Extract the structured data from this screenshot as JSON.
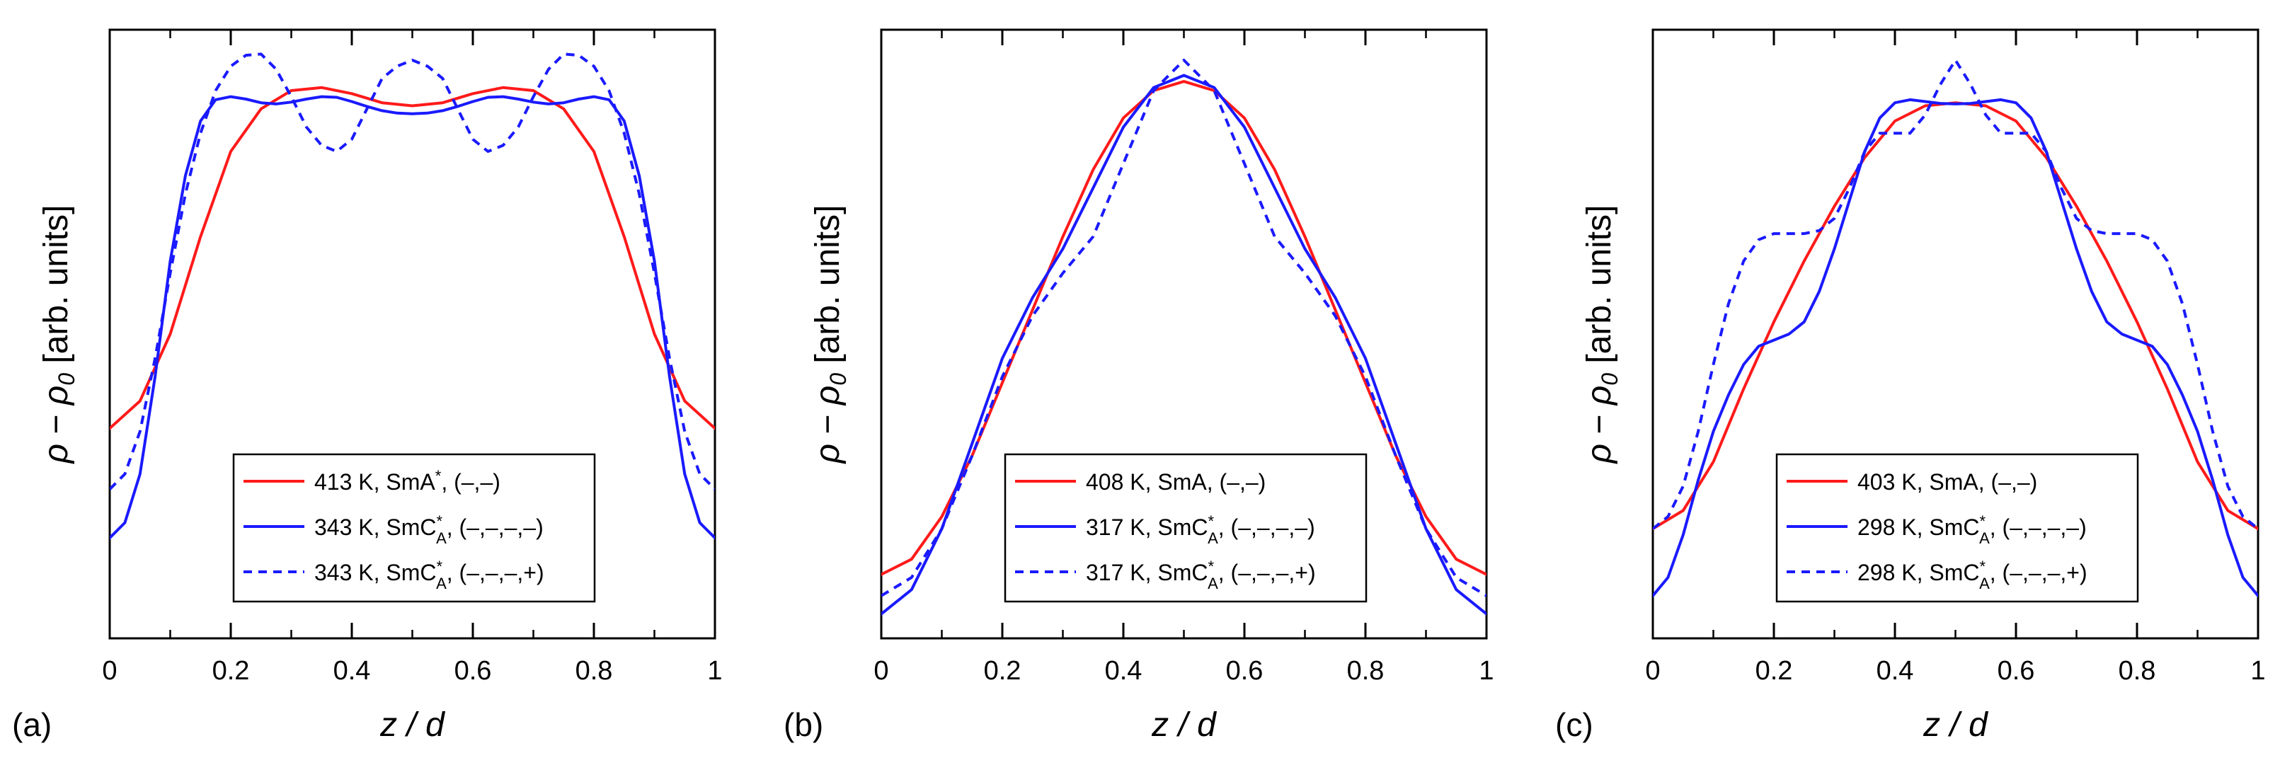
{
  "figure": {
    "ylabel_rho": "ρ",
    "ylabel_dash": " − ",
    "ylabel_rho0": "ρ",
    "ylabel_sub": "0",
    "ylabel_units": " [arb. units]",
    "xlabel": "z / d",
    "colors": {
      "red": "#ff1a1a",
      "blue": "#1a1aff",
      "axis": "#000000"
    }
  },
  "chart_data": [
    {
      "type": "line",
      "panel_label": "(a)",
      "xlabel": "z / d",
      "ylabel": "ρ − ρ0 [arb. units]",
      "xlim": [
        0,
        1
      ],
      "ylim": [
        0,
        1
      ],
      "yticks_labeled": false,
      "x_ticks": [
        0,
        0.2,
        0.4,
        0.6,
        0.8,
        1
      ],
      "x_tick_labels": [
        "0",
        "0.2",
        "0.4",
        "0.6",
        "0.8",
        "1"
      ],
      "legend_position": "lower-center",
      "series": [
        {
          "name": "413 K, SmA*, (–,–)",
          "temp": "413 K",
          "phase": "SmA",
          "sup": "*",
          "sub": "",
          "signs": "(–,–)",
          "color": "#ff1a1a",
          "dash": false,
          "x": [
            0,
            0.05,
            0.1,
            0.15,
            0.2,
            0.25,
            0.3,
            0.35,
            0.4,
            0.45,
            0.5,
            0.55,
            0.6,
            0.65,
            0.7,
            0.75,
            0.8,
            0.85,
            0.9,
            0.95,
            1
          ],
          "y": [
            0.345,
            0.39,
            0.5,
            0.66,
            0.8,
            0.87,
            0.9,
            0.905,
            0.895,
            0.88,
            0.875,
            0.88,
            0.895,
            0.905,
            0.9,
            0.87,
            0.8,
            0.66,
            0.5,
            0.39,
            0.345
          ]
        },
        {
          "name": "343 K, SmC*A, (–,–,–,–)",
          "temp": "343 K",
          "phase": "SmC",
          "sup": "*",
          "sub": "A",
          "signs": "(–,–,–,–)",
          "color": "#1a1aff",
          "dash": false,
          "x": [
            0,
            0.025,
            0.05,
            0.075,
            0.1,
            0.125,
            0.15,
            0.175,
            0.2,
            0.225,
            0.25,
            0.275,
            0.3,
            0.325,
            0.35,
            0.375,
            0.4,
            0.425,
            0.45,
            0.475,
            0.5,
            0.525,
            0.55,
            0.575,
            0.6,
            0.625,
            0.65,
            0.675,
            0.7,
            0.725,
            0.75,
            0.775,
            0.8,
            0.825,
            0.85,
            0.875,
            0.9,
            0.925,
            0.95,
            0.975,
            1
          ],
          "y": [
            0.165,
            0.19,
            0.27,
            0.43,
            0.62,
            0.76,
            0.85,
            0.885,
            0.89,
            0.886,
            0.88,
            0.878,
            0.881,
            0.886,
            0.89,
            0.889,
            0.882,
            0.874,
            0.867,
            0.863,
            0.862,
            0.863,
            0.867,
            0.874,
            0.882,
            0.889,
            0.89,
            0.886,
            0.881,
            0.878,
            0.88,
            0.886,
            0.89,
            0.885,
            0.85,
            0.76,
            0.62,
            0.43,
            0.27,
            0.19,
            0.165
          ]
        },
        {
          "name": "343 K, SmC*A, (–,–,–,+)",
          "temp": "343 K",
          "phase": "SmC",
          "sup": "*",
          "sub": "A",
          "signs": "(–,–,–,+)",
          "color": "#1a1aff",
          "dash": true,
          "x": [
            0,
            0.025,
            0.05,
            0.075,
            0.1,
            0.125,
            0.15,
            0.175,
            0.2,
            0.225,
            0.25,
            0.275,
            0.3,
            0.325,
            0.35,
            0.375,
            0.4,
            0.425,
            0.45,
            0.475,
            0.5,
            0.525,
            0.55,
            0.575,
            0.6,
            0.625,
            0.65,
            0.675,
            0.7,
            0.725,
            0.75,
            0.775,
            0.8,
            0.825,
            0.85,
            0.875,
            0.9,
            0.925,
            0.95,
            0.975,
            1
          ],
          "y": [
            0.245,
            0.27,
            0.34,
            0.46,
            0.6,
            0.73,
            0.83,
            0.9,
            0.94,
            0.958,
            0.96,
            0.935,
            0.89,
            0.84,
            0.81,
            0.8,
            0.82,
            0.87,
            0.92,
            0.94,
            0.95,
            0.94,
            0.92,
            0.87,
            0.82,
            0.8,
            0.81,
            0.84,
            0.89,
            0.935,
            0.96,
            0.958,
            0.94,
            0.9,
            0.83,
            0.73,
            0.6,
            0.46,
            0.34,
            0.27,
            0.245
          ]
        }
      ]
    },
    {
      "type": "line",
      "panel_label": "(b)",
      "xlabel": "z / d",
      "ylabel": "ρ − ρ0 [arb. units]",
      "xlim": [
        0,
        1
      ],
      "ylim": [
        0,
        1
      ],
      "yticks_labeled": false,
      "x_ticks": [
        0,
        0.2,
        0.4,
        0.6,
        0.8,
        1
      ],
      "x_tick_labels": [
        "0",
        "0.2",
        "0.4",
        "0.6",
        "0.8",
        "1"
      ],
      "legend_position": "lower-center",
      "series": [
        {
          "name": "408 K, SmA, (–,–)",
          "temp": "408 K",
          "phase": "SmA",
          "sup": "",
          "sub": "",
          "signs": "(–,–)",
          "color": "#ff1a1a",
          "dash": false,
          "x": [
            0,
            0.05,
            0.1,
            0.15,
            0.2,
            0.25,
            0.3,
            0.35,
            0.4,
            0.45,
            0.5,
            0.55,
            0.6,
            0.65,
            0.7,
            0.75,
            0.8,
            0.85,
            0.9,
            0.95,
            1
          ],
          "y": [
            0.105,
            0.13,
            0.2,
            0.3,
            0.42,
            0.54,
            0.66,
            0.77,
            0.855,
            0.9,
            0.915,
            0.9,
            0.855,
            0.77,
            0.66,
            0.54,
            0.42,
            0.3,
            0.2,
            0.13,
            0.105
          ]
        },
        {
          "name": "317 K, SmC*A, (–,–,–,–)",
          "temp": "317 K",
          "phase": "SmC",
          "sup": "*",
          "sub": "A",
          "signs": "(–,–,–,–)",
          "color": "#1a1aff",
          "dash": false,
          "x": [
            0,
            0.05,
            0.1,
            0.15,
            0.2,
            0.25,
            0.3,
            0.35,
            0.4,
            0.45,
            0.5,
            0.55,
            0.6,
            0.65,
            0.7,
            0.75,
            0.8,
            0.85,
            0.9,
            0.95,
            1
          ],
          "y": [
            0.04,
            0.08,
            0.18,
            0.32,
            0.46,
            0.56,
            0.64,
            0.74,
            0.84,
            0.905,
            0.925,
            0.905,
            0.84,
            0.74,
            0.64,
            0.56,
            0.46,
            0.32,
            0.18,
            0.08,
            0.04
          ]
        },
        {
          "name": "317 K, SmC*A, (–,–,–,+)",
          "temp": "317 K",
          "phase": "SmC",
          "sup": "*",
          "sub": "A",
          "signs": "(–,–,–,+)",
          "color": "#1a1aff",
          "dash": true,
          "x": [
            0,
            0.05,
            0.1,
            0.15,
            0.2,
            0.25,
            0.3,
            0.35,
            0.4,
            0.45,
            0.5,
            0.55,
            0.6,
            0.65,
            0.7,
            0.75,
            0.8,
            0.85,
            0.9,
            0.95,
            1
          ],
          "y": [
            0.07,
            0.1,
            0.18,
            0.3,
            0.43,
            0.53,
            0.6,
            0.66,
            0.78,
            0.9,
            0.95,
            0.9,
            0.78,
            0.66,
            0.6,
            0.53,
            0.43,
            0.3,
            0.18,
            0.1,
            0.07
          ]
        }
      ]
    },
    {
      "type": "line",
      "panel_label": "(c)",
      "xlabel": "z / d",
      "ylabel": "ρ − ρ0 [arb. units]",
      "xlim": [
        0,
        1
      ],
      "ylim": [
        0,
        1
      ],
      "yticks_labeled": false,
      "x_ticks": [
        0,
        0.2,
        0.4,
        0.6,
        0.8,
        1
      ],
      "x_tick_labels": [
        "0",
        "0.2",
        "0.4",
        "0.6",
        "0.8",
        "1"
      ],
      "legend_position": "lower-center",
      "series": [
        {
          "name": "403 K, SmA, (–,–)",
          "temp": "403 K",
          "phase": "SmA",
          "sup": "",
          "sub": "",
          "signs": "(–,–)",
          "color": "#ff1a1a",
          "dash": false,
          "x": [
            0,
            0.05,
            0.1,
            0.15,
            0.2,
            0.25,
            0.3,
            0.35,
            0.4,
            0.45,
            0.5,
            0.55,
            0.6,
            0.65,
            0.7,
            0.75,
            0.8,
            0.85,
            0.9,
            0.95,
            1
          ],
          "y": [
            0.18,
            0.21,
            0.29,
            0.41,
            0.52,
            0.62,
            0.71,
            0.79,
            0.85,
            0.875,
            0.88,
            0.875,
            0.85,
            0.79,
            0.71,
            0.62,
            0.52,
            0.41,
            0.29,
            0.21,
            0.18
          ]
        },
        {
          "name": "298 K, SmC*A, (–,–,–,–)",
          "temp": "298 K",
          "phase": "SmC",
          "sup": "*",
          "sub": "A",
          "signs": "(–,–,–,–)",
          "color": "#1a1aff",
          "dash": false,
          "x": [
            0,
            0.025,
            0.05,
            0.075,
            0.1,
            0.125,
            0.15,
            0.175,
            0.2,
            0.225,
            0.25,
            0.275,
            0.3,
            0.325,
            0.35,
            0.375,
            0.4,
            0.425,
            0.45,
            0.475,
            0.5,
            0.525,
            0.55,
            0.575,
            0.6,
            0.625,
            0.65,
            0.675,
            0.7,
            0.725,
            0.75,
            0.775,
            0.8,
            0.825,
            0.85,
            0.875,
            0.9,
            0.925,
            0.95,
            0.975,
            1
          ],
          "y": [
            0.07,
            0.1,
            0.17,
            0.26,
            0.34,
            0.4,
            0.45,
            0.48,
            0.49,
            0.5,
            0.52,
            0.57,
            0.64,
            0.72,
            0.8,
            0.855,
            0.88,
            0.885,
            0.882,
            0.879,
            0.878,
            0.879,
            0.882,
            0.885,
            0.88,
            0.855,
            0.8,
            0.72,
            0.64,
            0.57,
            0.52,
            0.5,
            0.49,
            0.48,
            0.45,
            0.4,
            0.34,
            0.26,
            0.17,
            0.1,
            0.07
          ]
        },
        {
          "name": "298 K, SmC*A, (–,–,–,+)",
          "temp": "298 K",
          "phase": "SmC",
          "sup": "*",
          "sub": "A",
          "signs": "(–,–,–,+)",
          "color": "#1a1aff",
          "dash": true,
          "x": [
            0,
            0.025,
            0.05,
            0.075,
            0.1,
            0.125,
            0.15,
            0.175,
            0.2,
            0.225,
            0.25,
            0.275,
            0.3,
            0.325,
            0.35,
            0.375,
            0.4,
            0.425,
            0.45,
            0.475,
            0.5,
            0.525,
            0.55,
            0.575,
            0.6,
            0.625,
            0.65,
            0.675,
            0.7,
            0.725,
            0.75,
            0.775,
            0.8,
            0.825,
            0.85,
            0.875,
            0.9,
            0.925,
            0.95,
            0.975,
            1
          ],
          "y": [
            0.18,
            0.2,
            0.25,
            0.34,
            0.45,
            0.55,
            0.62,
            0.655,
            0.665,
            0.665,
            0.665,
            0.67,
            0.69,
            0.74,
            0.8,
            0.83,
            0.83,
            0.83,
            0.86,
            0.91,
            0.95,
            0.91,
            0.86,
            0.83,
            0.83,
            0.83,
            0.8,
            0.74,
            0.69,
            0.67,
            0.665,
            0.665,
            0.665,
            0.655,
            0.62,
            0.55,
            0.45,
            0.34,
            0.25,
            0.2,
            0.18
          ]
        }
      ]
    }
  ]
}
